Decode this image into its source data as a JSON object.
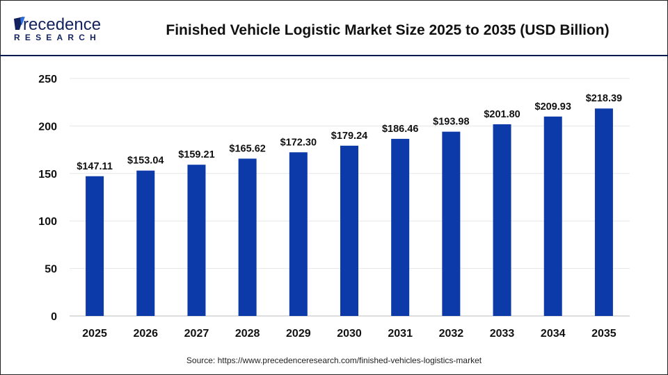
{
  "logo": {
    "line1": "Precedence",
    "line2": "RESEARCH"
  },
  "colors": {
    "bar": "#0d3aa9",
    "header_line": "#0a1a4a",
    "grid": "#e6e6e6",
    "logo_dark": "#13225e",
    "logo_accent": "#2e6fe0"
  },
  "chart_data": {
    "type": "bar",
    "title": "Finished Vehicle Logistic Market Size 2025 to 2035 (USD Billion)",
    "categories": [
      "2025",
      "2026",
      "2027",
      "2028",
      "2029",
      "2030",
      "2031",
      "2032",
      "2033",
      "2034",
      "2035"
    ],
    "values": [
      147.11,
      153.04,
      159.21,
      165.62,
      172.3,
      179.24,
      186.46,
      193.98,
      201.8,
      209.93,
      218.39
    ],
    "data_labels": [
      "$147.11",
      "$153.04",
      "$159.21",
      "$165.62",
      "$172.30",
      "$179.24",
      "$186.46",
      "$193.98",
      "$201.80",
      "$209.93",
      "$218.39"
    ],
    "ylim": [
      0,
      250
    ],
    "yticks": [
      0,
      50,
      100,
      150,
      200,
      250
    ],
    "xlabel": "",
    "ylabel": "",
    "grid": true,
    "legend": "none"
  },
  "source": "Source: https://www.precedenceresearch.com/finished-vehicles-logistics-market"
}
